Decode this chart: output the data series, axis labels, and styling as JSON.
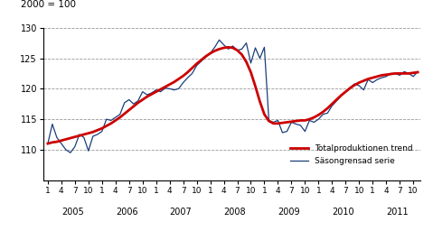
{
  "title": "2000 = 100",
  "ylim": [
    105,
    130
  ],
  "yticks": [
    110,
    115,
    120,
    125,
    130
  ],
  "legend_trend": "Totalproduktionen trend",
  "legend_seas": "Säsongrensad serie",
  "trend_color": "#cc0000",
  "seas_color": "#1a3f7a",
  "trend_lw": 2.0,
  "seas_lw": 0.9,
  "background": "#ffffff",
  "years": [
    "2005",
    "2006",
    "2007",
    "2008",
    "2009",
    "2010",
    "2011"
  ],
  "trend": [
    111.0,
    111.2,
    111.3,
    111.5,
    111.7,
    111.9,
    112.1,
    112.3,
    112.5,
    112.7,
    112.9,
    113.2,
    113.5,
    113.9,
    114.3,
    114.8,
    115.3,
    115.9,
    116.5,
    117.1,
    117.7,
    118.2,
    118.7,
    119.1,
    119.5,
    119.9,
    120.3,
    120.7,
    121.1,
    121.6,
    122.1,
    122.7,
    123.4,
    124.1,
    124.7,
    125.3,
    125.8,
    126.2,
    126.5,
    126.7,
    126.8,
    126.7,
    126.3,
    125.6,
    124.4,
    122.7,
    120.4,
    117.9,
    115.8,
    114.7,
    114.3,
    114.3,
    114.4,
    114.5,
    114.6,
    114.7,
    114.8,
    114.8,
    115.0,
    115.3,
    115.7,
    116.2,
    116.8,
    117.5,
    118.2,
    118.9,
    119.5,
    120.1,
    120.6,
    121.0,
    121.3,
    121.6,
    121.8,
    122.0,
    122.2,
    122.3,
    122.4,
    122.5,
    122.5,
    122.5,
    122.5,
    122.6,
    122.7
  ],
  "seas": [
    111.0,
    114.2,
    112.0,
    111.0,
    110.0,
    109.5,
    110.5,
    112.5,
    112.0,
    109.8,
    112.2,
    112.5,
    113.0,
    115.0,
    114.8,
    115.3,
    115.8,
    117.7,
    118.2,
    117.5,
    118.0,
    119.5,
    119.0,
    119.3,
    119.8,
    119.5,
    120.1,
    120.0,
    119.8,
    120.0,
    121.0,
    121.8,
    122.5,
    123.8,
    124.5,
    125.2,
    125.8,
    126.8,
    128.0,
    127.2,
    126.5,
    127.0,
    126.3,
    126.5,
    127.5,
    124.2,
    126.7,
    125.0,
    126.8,
    114.8,
    114.5,
    114.8,
    112.8,
    113.0,
    114.5,
    114.2,
    114.0,
    113.0,
    114.8,
    114.5,
    115.0,
    115.8,
    116.0,
    117.2,
    118.0,
    118.8,
    119.5,
    120.2,
    120.8,
    120.5,
    119.8,
    121.5,
    121.0,
    121.5,
    121.8,
    122.0,
    122.5,
    122.5,
    122.2,
    122.8,
    122.5,
    122.0,
    122.8
  ]
}
